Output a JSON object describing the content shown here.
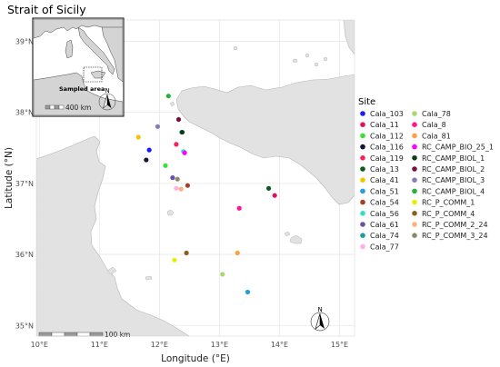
{
  "title": "Strait of Sicily",
  "axes": {
    "xlabel": "Longitude (°E)",
    "ylabel": "Latitude (°N)",
    "xlim": [
      9.95,
      15.25
    ],
    "ylim": [
      34.85,
      39.3
    ],
    "xticks": [
      {
        "v": 10,
        "label": "10°E"
      },
      {
        "v": 11,
        "label": "11°E"
      },
      {
        "v": 12,
        "label": "12°E"
      },
      {
        "v": 13,
        "label": "13°E"
      },
      {
        "v": 14,
        "label": "14°E"
      },
      {
        "v": 15,
        "label": "15°E"
      }
    ],
    "yticks": [
      {
        "v": 35,
        "label": "35°N"
      },
      {
        "v": 36,
        "label": "36°N"
      },
      {
        "v": 37,
        "label": "37°N"
      },
      {
        "v": 38,
        "label": "38°N"
      },
      {
        "v": 39,
        "label": "39°N"
      }
    ],
    "grid": true
  },
  "legend": {
    "title": "Site",
    "col1": [
      {
        "name": "Cala_103",
        "color": "#1a1aff"
      },
      {
        "name": "Cala_11",
        "color": "#e0115f"
      },
      {
        "name": "Cala_112",
        "color": "#38e038"
      },
      {
        "name": "Cala_116",
        "color": "#14143c"
      },
      {
        "name": "Cala_119",
        "color": "#ff1f5a"
      },
      {
        "name": "Cala_13",
        "color": "#0a5c1e"
      },
      {
        "name": "Cala_41",
        "color": "#f5c400"
      },
      {
        "name": "Cala_51",
        "color": "#1e9fe6"
      },
      {
        "name": "Cala_54",
        "color": "#a0402a"
      },
      {
        "name": "Cala_56",
        "color": "#2ee0c8"
      },
      {
        "name": "Cala_61",
        "color": "#6a4fb0"
      },
      {
        "name": "Cala_74",
        "color": "#1a9e9e"
      },
      {
        "name": "Cala_77",
        "color": "#ffb0e8"
      }
    ],
    "col2": [
      {
        "name": "Cala_78",
        "color": "#a8d870"
      },
      {
        "name": "Cala_8",
        "color": "#ff1493"
      },
      {
        "name": "Cala_81",
        "color": "#ffa040"
      },
      {
        "name": "RC_CAMP_BIO_25_1",
        "color": "#ff00ff"
      },
      {
        "name": "RC_CAMP_BIOL_1",
        "color": "#0b3d12"
      },
      {
        "name": "RC_CAMP_BIOL_2",
        "color": "#7a1040"
      },
      {
        "name": "RC_CAMP_BIOL_3",
        "color": "#8a7ab8"
      },
      {
        "name": "RC_CAMP_BIOL_4",
        "color": "#27b03a"
      },
      {
        "name": "RC_P_COMM_1",
        "color": "#e8f000"
      },
      {
        "name": "RC_P_COMM_4",
        "color": "#8a6020"
      },
      {
        "name": "RC_P_COMM_2_24",
        "color": "#ffb080"
      },
      {
        "name": "RC_P_COMM_3_24",
        "color": "#8a8a6a"
      }
    ]
  },
  "sites": [
    {
      "name": "Cala_103",
      "lon": 11.83,
      "lat": 37.47,
      "color": "#1a1aff"
    },
    {
      "name": "Cala_11",
      "lon": 13.92,
      "lat": 36.83,
      "color": "#e0115f"
    },
    {
      "name": "Cala_112",
      "lon": 12.1,
      "lat": 37.25,
      "color": "#38e038"
    },
    {
      "name": "Cala_116",
      "lon": 11.78,
      "lat": 37.33,
      "color": "#14143c"
    },
    {
      "name": "Cala_119",
      "lon": 12.28,
      "lat": 37.55,
      "color": "#ff1f5a"
    },
    {
      "name": "Cala_13",
      "lon": 13.82,
      "lat": 36.93,
      "color": "#0a5c1e"
    },
    {
      "name": "Cala_41",
      "lon": 11.65,
      "lat": 37.65,
      "color": "#f5c400"
    },
    {
      "name": "Cala_51",
      "lon": 13.47,
      "lat": 35.47,
      "color": "#1e9fe6"
    },
    {
      "name": "Cala_54",
      "lon": 12.47,
      "lat": 36.97,
      "color": "#a0402a"
    },
    {
      "name": "Cala_56",
      "lon": 12.4,
      "lat": 37.45,
      "color": "#2ee0c8"
    },
    {
      "name": "Cala_61",
      "lon": 12.22,
      "lat": 37.08,
      "color": "#6a4fb0"
    },
    {
      "name": "Cala_74",
      "lon": 12.37,
      "lat": 37.72,
      "color": "#1a9e9e"
    },
    {
      "name": "Cala_77",
      "lon": 12.28,
      "lat": 36.93,
      "color": "#ffb0e8"
    },
    {
      "name": "Cala_78",
      "lon": 13.05,
      "lat": 35.72,
      "color": "#a8d870"
    },
    {
      "name": "Cala_8",
      "lon": 13.33,
      "lat": 36.65,
      "color": "#ff1493"
    },
    {
      "name": "Cala_81",
      "lon": 13.3,
      "lat": 36.02,
      "color": "#ffa040"
    },
    {
      "name": "RC_CAMP_BIO_25_1",
      "lon": 12.42,
      "lat": 37.43,
      "color": "#ff00ff"
    },
    {
      "name": "RC_CAMP_BIOL_1",
      "lon": 12.38,
      "lat": 37.72,
      "color": "#0b3d12"
    },
    {
      "name": "RC_CAMP_BIOL_2",
      "lon": 12.32,
      "lat": 37.9,
      "color": "#7a1040"
    },
    {
      "name": "RC_CAMP_BIOL_3",
      "lon": 11.97,
      "lat": 37.8,
      "color": "#8a7ab8"
    },
    {
      "name": "RC_CAMP_BIOL_4",
      "lon": 12.15,
      "lat": 38.23,
      "color": "#27b03a"
    },
    {
      "name": "RC_P_COMM_1",
      "lon": 12.25,
      "lat": 35.92,
      "color": "#e8f000"
    },
    {
      "name": "RC_P_COMM_4",
      "lon": 12.45,
      "lat": 36.02,
      "color": "#8a6020"
    },
    {
      "name": "RC_P_COMM_2_24",
      "lon": 12.36,
      "lat": 36.92,
      "color": "#ffb080"
    },
    {
      "name": "RC_P_COMM_3_24",
      "lon": 12.3,
      "lat": 37.06,
      "color": "#8a8a6a"
    }
  ],
  "scalebar": {
    "label": "100 km"
  },
  "inset": {
    "sampled_label": "Sampled area",
    "scale_label": "400 km"
  },
  "north_label": "N",
  "colors": {
    "land": "#e2e2e2",
    "land_stroke": "#b5b5b5",
    "grid": "#e8e8e8"
  }
}
